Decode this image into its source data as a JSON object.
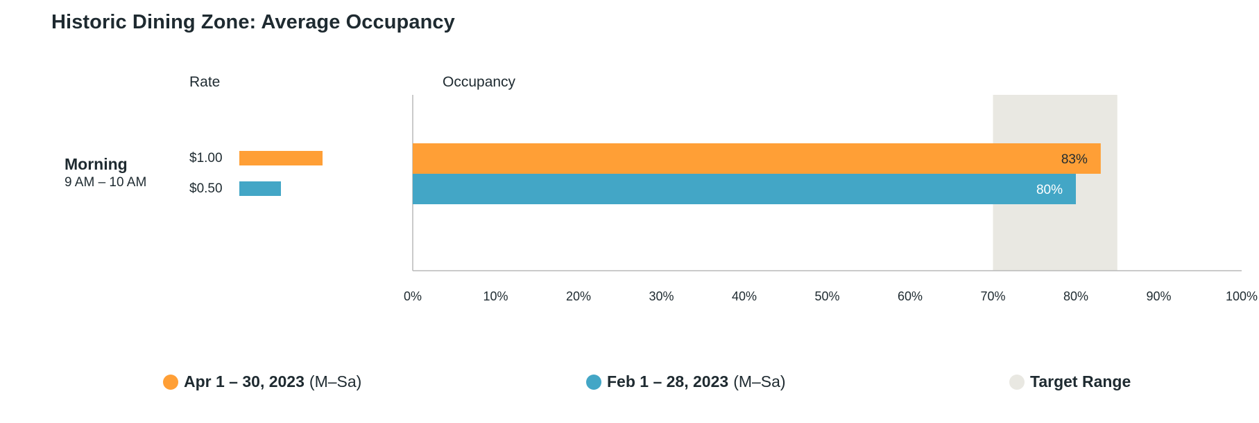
{
  "title": "Historic Dining Zone: Average Occupancy",
  "rate_heading": "Rate",
  "occupancy_heading": "Occupancy",
  "period": {
    "name": "Morning",
    "time": "9 AM – 10 AM"
  },
  "colors": {
    "apr": "#ff9f36",
    "feb": "#43a6c6",
    "target": "#e9e8e2",
    "axis": "#b8b8b8"
  },
  "chart_data": {
    "type": "bar",
    "orientation": "horizontal",
    "title": "Historic Dining Zone: Average Occupancy",
    "categories": [
      "Morning"
    ],
    "series": [
      {
        "name": "Apr 1 – 30, 2023",
        "rate": "$1.00",
        "rate_value": 1.0,
        "values": [
          83
        ],
        "value_label": "83%"
      },
      {
        "name": "Feb 1 – 28, 2023",
        "rate": "$0.50",
        "rate_value": 0.5,
        "values": [
          80
        ],
        "value_label": "80%"
      }
    ],
    "target_range": [
      70,
      85
    ],
    "xlim": [
      0,
      100
    ],
    "xticks": [
      "0%",
      "10%",
      "20%",
      "30%",
      "40%",
      "50%",
      "60%",
      "70%",
      "80%",
      "90%",
      "100%"
    ],
    "rate_scale_max": 1.0,
    "grid": false,
    "legend_position": "bottom"
  },
  "legend": [
    {
      "name": "Apr 1 – 30, 2023",
      "suffix": "(M–Sa)",
      "color": "#ff9f36"
    },
    {
      "name": "Feb 1 – 28, 2023",
      "suffix": "(M–Sa)",
      "color": "#43a6c6"
    },
    {
      "name": "Target Range",
      "suffix": "",
      "color": "#e9e8e2"
    }
  ]
}
